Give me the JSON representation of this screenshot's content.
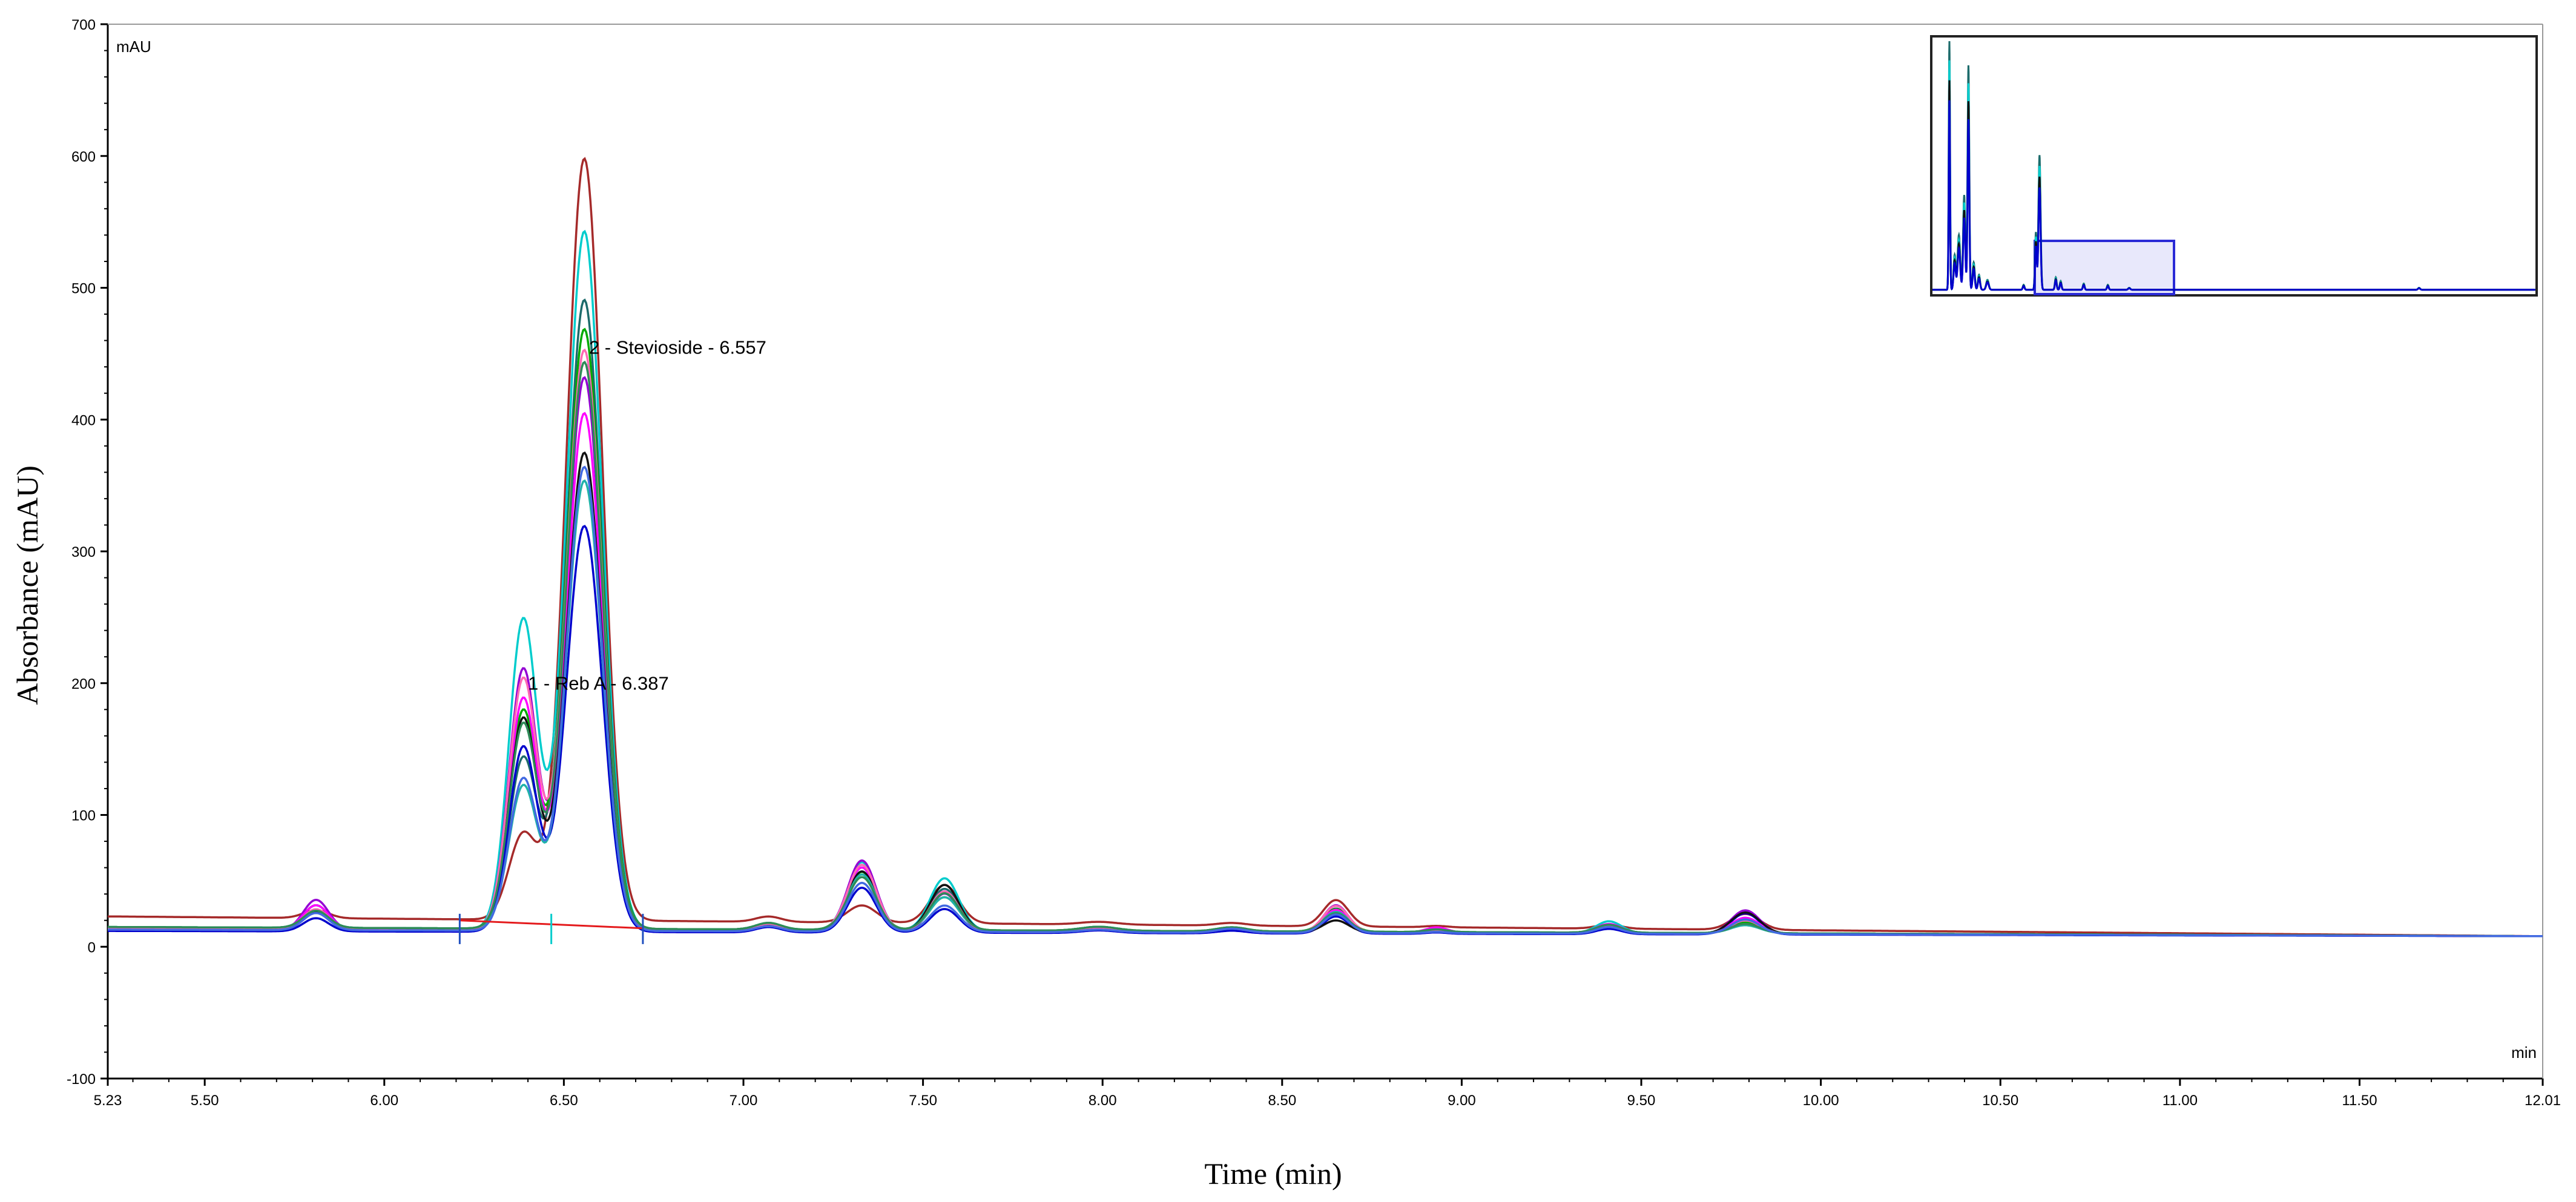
{
  "chart_data": {
    "type": "line",
    "title": "",
    "xlabel": "Time (min)",
    "ylabel": "Absorbance (mAU)",
    "x_unit": "min",
    "y_unit": "mAU",
    "xlim": [
      5.23,
      12.01
    ],
    "ylim": [
      -100,
      700
    ],
    "x_ticks": [
      5.23,
      5.5,
      6.0,
      6.5,
      7.0,
      7.5,
      8.0,
      8.5,
      9.0,
      9.5,
      10.0,
      10.5,
      11.0,
      11.5,
      12.01
    ],
    "x_tick_labels": [
      "5.23",
      "5.50",
      "6.00",
      "6.50",
      "7.00",
      "7.50",
      "8.00",
      "8.50",
      "9.00",
      "9.50",
      "10.00",
      "10.50",
      "11.00",
      "11.50",
      "12.01"
    ],
    "y_ticks": [
      -100,
      0,
      100,
      200,
      300,
      400,
      500,
      600,
      700
    ],
    "y_tick_labels": [
      "-100",
      "0",
      "100",
      "200",
      "300",
      "400",
      "500",
      "600",
      "700"
    ],
    "grid": false,
    "legend": "none",
    "annotations": [
      {
        "text": "2 - Stevioside - 6.557",
        "x": 6.57,
        "y": 450
      },
      {
        "text": "1 - Reb A - 6.387",
        "x": 6.4,
        "y": 195
      }
    ],
    "peak_x": [
      5.81,
      6.387,
      6.557,
      7.07,
      7.33,
      7.56,
      7.99,
      8.36,
      8.65,
      8.93,
      9.41,
      9.79
    ],
    "series": [
      {
        "color": "#a52a2a",
        "baseline": 23,
        "heights": [
          6,
          65,
          578,
          4,
          13,
          29,
          2,
          2,
          20,
          1,
          3,
          12
        ]
      },
      {
        "color": "#00cccc",
        "baseline": 14,
        "heights": [
          18,
          235,
          530,
          5,
          52,
          40,
          3,
          3,
          15,
          2,
          9,
          12
        ]
      },
      {
        "color": "#1c6b6b",
        "baseline": 14,
        "heights": [
          18,
          130,
          478,
          5,
          48,
          32,
          3,
          3,
          18,
          2,
          6,
          10
        ]
      },
      {
        "color": "#0000cd",
        "baseline": 12,
        "heights": [
          10,
          140,
          308,
          4,
          34,
          18,
          2,
          2,
          13,
          1,
          4,
          16
        ]
      },
      {
        "color": "#9400d3",
        "baseline": 13,
        "heights": [
          23,
          198,
          420,
          5,
          54,
          29,
          3,
          3,
          21,
          3,
          7,
          18
        ]
      },
      {
        "color": "#00aa00",
        "baseline": 15,
        "heights": [
          13,
          165,
          455,
          5,
          44,
          25,
          3,
          3,
          17,
          2,
          6,
          8
        ]
      },
      {
        "color": "#ff00ff",
        "baseline": 14,
        "heights": [
          18,
          175,
          392,
          5,
          48,
          30,
          3,
          3,
          17,
          4,
          7,
          12
        ]
      },
      {
        "color": "#111111",
        "baseline": 14,
        "heights": [
          13,
          160,
          362,
          4,
          45,
          35,
          2,
          3,
          9,
          2,
          5,
          16
        ]
      },
      {
        "color": "#20b2aa",
        "baseline": 15,
        "heights": [
          13,
          108,
          340,
          5,
          42,
          25,
          3,
          3,
          15,
          2,
          5,
          6
        ]
      },
      {
        "color": "#ff69b4",
        "baseline": 14,
        "heights": [
          15,
          190,
          440,
          5,
          50,
          30,
          3,
          3,
          20,
          2,
          6,
          10
        ]
      },
      {
        "color": "#2e8b57",
        "baseline": 15,
        "heights": [
          13,
          155,
          430,
          5,
          40,
          28,
          3,
          3,
          14,
          2,
          6,
          7
        ]
      },
      {
        "color": "#4169e1",
        "baseline": 13,
        "heights": [
          13,
          115,
          352,
          4,
          37,
          20,
          2,
          3,
          14,
          1,
          5,
          11
        ]
      }
    ],
    "baseline_marker": {
      "color": "#e41a1c",
      "x_start": 6.21,
      "x_end": 6.72,
      "y_start": 20,
      "y_end": 14
    }
  }
}
